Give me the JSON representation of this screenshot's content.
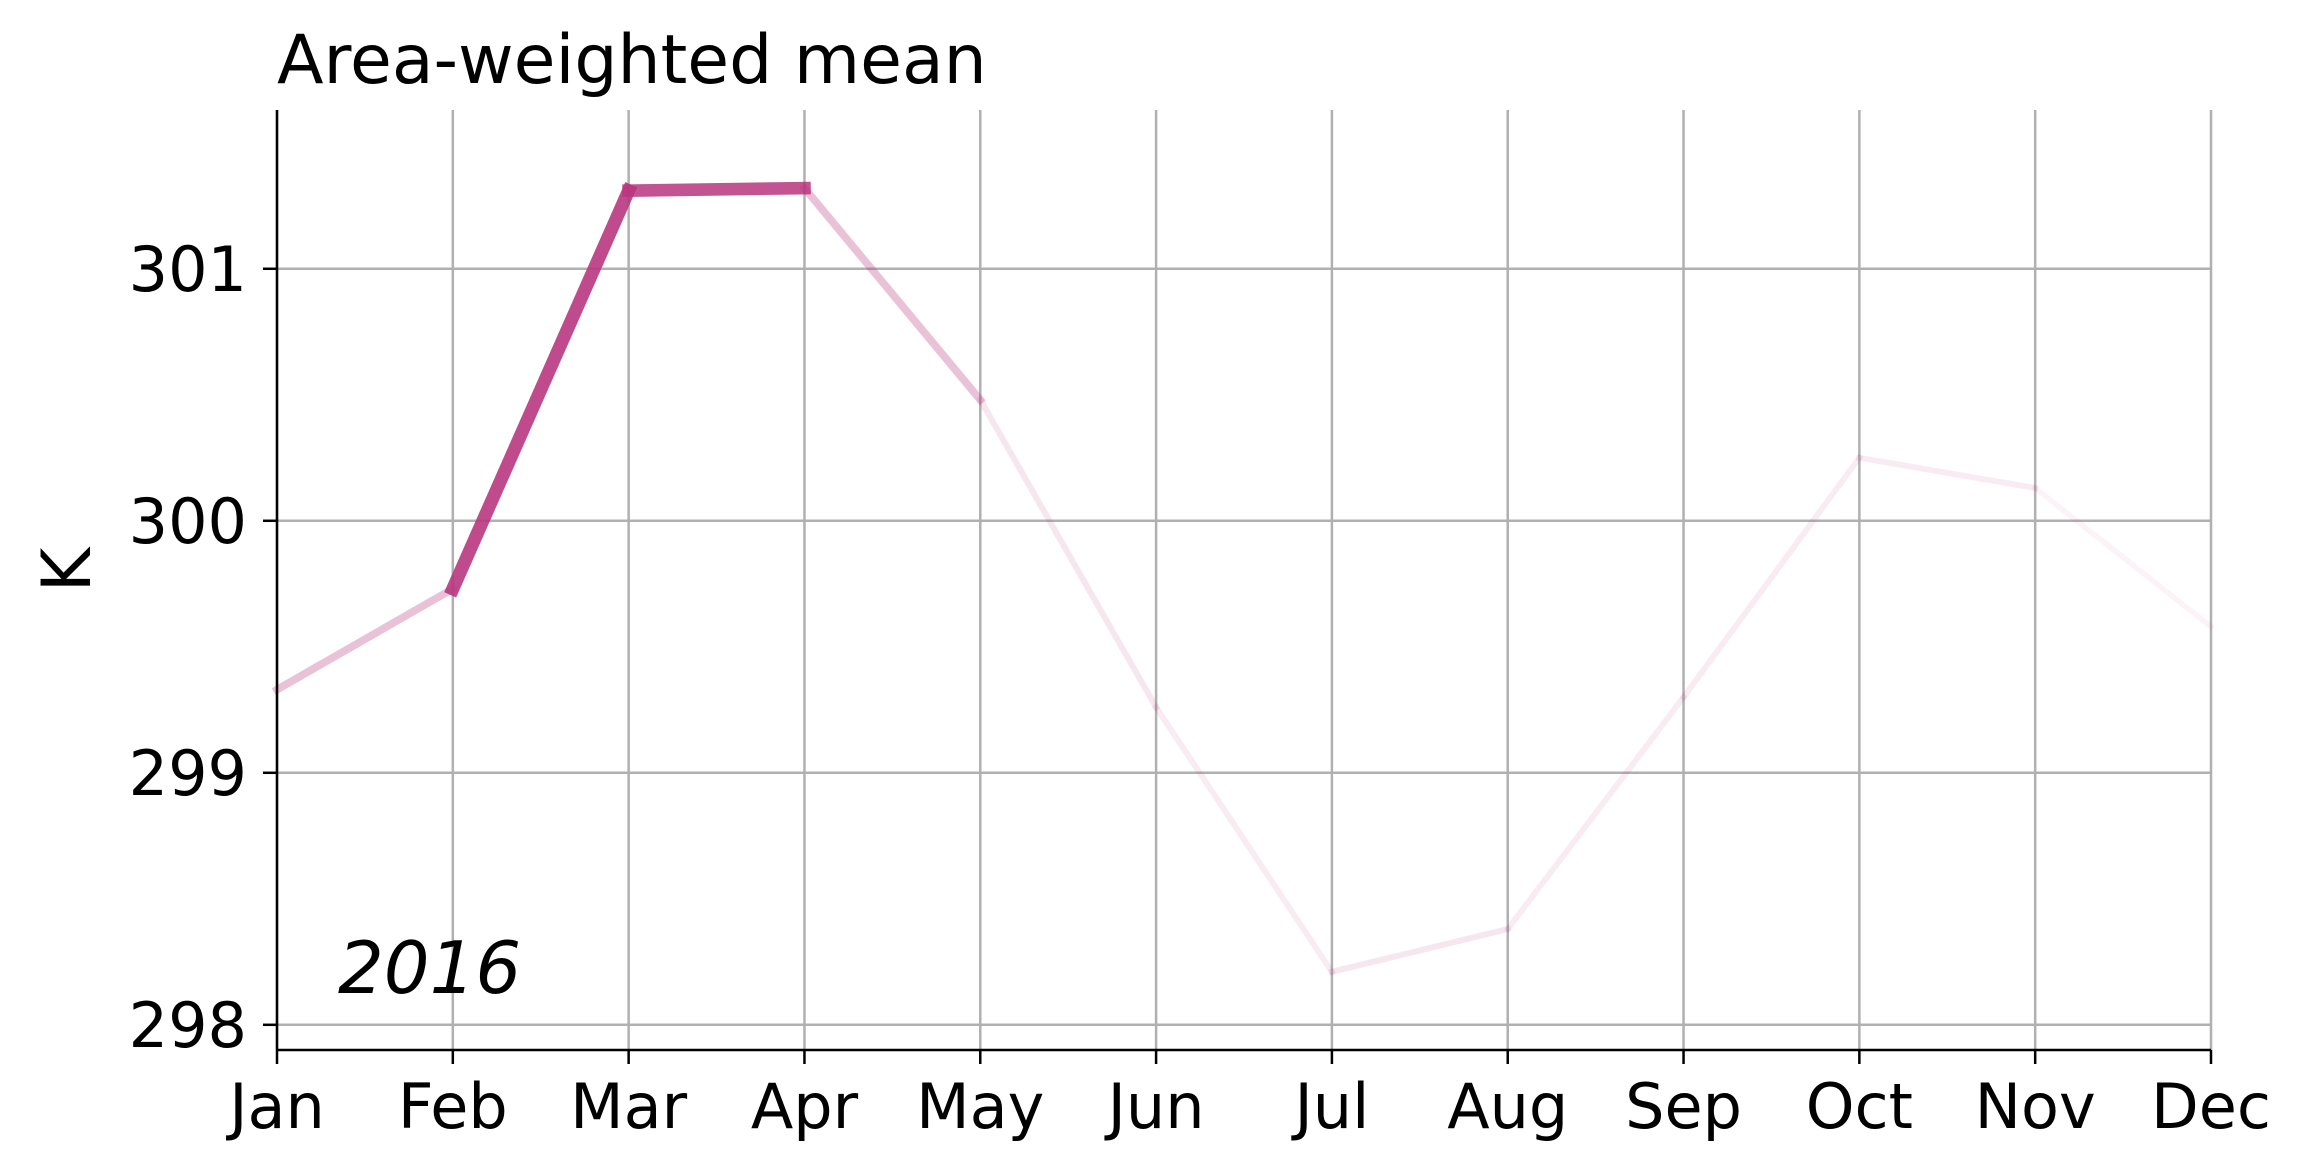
{
  "chart_data": {
    "type": "line",
    "title": "Area-weighted mean",
    "xlabel": "",
    "ylabel": "K",
    "annotation": "2016",
    "categories": [
      "Jan",
      "Feb",
      "Mar",
      "Apr",
      "May",
      "Jun",
      "Jul",
      "Aug",
      "Sep",
      "Oct",
      "Nov",
      "Dec"
    ],
    "yticks": [
      298,
      299,
      300,
      301
    ],
    "ylim": [
      297.9,
      301.63
    ],
    "grid": true,
    "series": [
      {
        "values": [
          299.33,
          299.73,
          301.31,
          301.32,
          300.48,
          299.26,
          298.21,
          298.38,
          299.3,
          300.25,
          300.13,
          299.58
        ]
      }
    ],
    "segment_emphasis": [
      0.3,
      0.9,
      0.85,
      0.3,
      0.12,
      0.1,
      0.12,
      0.1,
      0.1,
      0.1,
      0.06
    ],
    "colors": {
      "line": "#b8367f",
      "grid": "#b0b0b0",
      "axis": "#000000"
    }
  }
}
